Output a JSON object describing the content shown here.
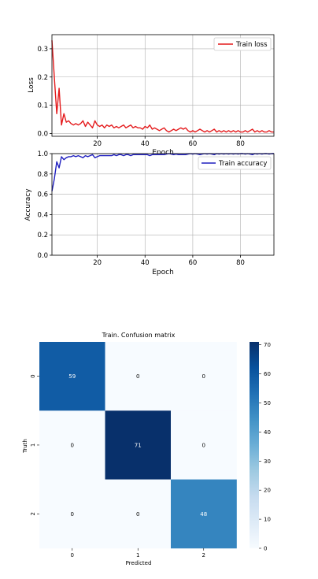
{
  "chart_data": [
    {
      "type": "line",
      "xlabel": "Epoch",
      "ylabel": "Loss",
      "xlim": [
        1,
        94
      ],
      "ylim": [
        -0.01,
        0.35
      ],
      "xticks": [
        20,
        40,
        60,
        80
      ],
      "yticks": [
        0.0,
        0.1,
        0.2,
        0.3
      ],
      "ytick_labels": [
        "0.0",
        "0.1",
        "0.2",
        "0.3"
      ],
      "grid": true,
      "legend": "top-right",
      "series": [
        {
          "name": "Train loss",
          "color": "#e41a1c",
          "x": [
            1,
            2,
            3,
            4,
            5,
            6,
            7,
            8,
            9,
            10,
            11,
            12,
            13,
            14,
            15,
            16,
            17,
            18,
            19,
            20,
            21,
            22,
            23,
            24,
            25,
            26,
            27,
            28,
            29,
            30,
            31,
            32,
            33,
            34,
            35,
            36,
            37,
            38,
            39,
            40,
            41,
            42,
            43,
            44,
            45,
            46,
            47,
            48,
            49,
            50,
            51,
            52,
            53,
            54,
            55,
            56,
            57,
            58,
            59,
            60,
            61,
            62,
            63,
            64,
            65,
            66,
            67,
            68,
            69,
            70,
            71,
            72,
            73,
            74,
            75,
            76,
            77,
            78,
            79,
            80,
            81,
            82,
            83,
            84,
            85,
            86,
            87,
            88,
            89,
            90,
            91,
            92,
            93,
            94
          ],
          "y": [
            0.33,
            0.2,
            0.07,
            0.16,
            0.03,
            0.07,
            0.04,
            0.045,
            0.035,
            0.03,
            0.035,
            0.03,
            0.035,
            0.045,
            0.025,
            0.04,
            0.03,
            0.02,
            0.045,
            0.03,
            0.025,
            0.03,
            0.02,
            0.03,
            0.025,
            0.03,
            0.02,
            0.025,
            0.02,
            0.025,
            0.03,
            0.02,
            0.025,
            0.03,
            0.02,
            0.025,
            0.02,
            0.02,
            0.015,
            0.025,
            0.02,
            0.03,
            0.015,
            0.02,
            0.015,
            0.01,
            0.015,
            0.02,
            0.01,
            0.005,
            0.01,
            0.015,
            0.01,
            0.015,
            0.02,
            0.015,
            0.02,
            0.01,
            0.005,
            0.01,
            0.005,
            0.01,
            0.015,
            0.01,
            0.005,
            0.01,
            0.005,
            0.01,
            0.015,
            0.005,
            0.01,
            0.005,
            0.01,
            0.005,
            0.01,
            0.005,
            0.01,
            0.005,
            0.01,
            0.005,
            0.005,
            0.01,
            0.005,
            0.01,
            0.015,
            0.005,
            0.01,
            0.005,
            0.01,
            0.005,
            0.005,
            0.01,
            0.005,
            0.005
          ]
        }
      ]
    },
    {
      "type": "line",
      "xlabel": "Epoch",
      "ylabel": "Accuracy",
      "xlim": [
        1,
        94
      ],
      "ylim": [
        0.0,
        1.0
      ],
      "xticks": [
        20,
        40,
        60,
        80
      ],
      "yticks": [
        0.0,
        0.2,
        0.4,
        0.6,
        0.8,
        1.0
      ],
      "ytick_labels": [
        "0.0",
        "0.2",
        "0.4",
        "0.6",
        "0.8",
        "1.0"
      ],
      "grid": true,
      "legend": "top-right",
      "series": [
        {
          "name": "Train accuracy",
          "color": "#1f1fbf",
          "x": [
            1,
            2,
            3,
            4,
            5,
            6,
            7,
            8,
            9,
            10,
            11,
            12,
            13,
            14,
            15,
            16,
            17,
            18,
            19,
            20,
            21,
            22,
            23,
            24,
            25,
            26,
            27,
            28,
            29,
            30,
            31,
            32,
            33,
            34,
            35,
            36,
            37,
            38,
            39,
            40,
            41,
            42,
            43,
            44,
            45,
            46,
            47,
            48,
            49,
            50,
            51,
            52,
            53,
            54,
            55,
            56,
            57,
            58,
            59,
            60,
            61,
            62,
            63,
            64,
            65,
            66,
            67,
            68,
            69,
            70,
            71,
            72,
            73,
            74,
            75,
            76,
            77,
            78,
            79,
            80,
            81,
            82,
            83,
            84,
            85,
            86,
            87,
            88,
            89,
            90,
            91,
            92,
            93,
            94
          ],
          "y": [
            0.63,
            0.75,
            0.92,
            0.86,
            0.97,
            0.94,
            0.96,
            0.97,
            0.97,
            0.98,
            0.97,
            0.98,
            0.97,
            0.96,
            0.98,
            0.97,
            0.98,
            0.99,
            0.96,
            0.97,
            0.98,
            0.98,
            0.98,
            0.98,
            0.98,
            0.98,
            0.99,
            0.98,
            0.99,
            0.99,
            0.98,
            0.99,
            0.99,
            0.98,
            0.99,
            0.99,
            0.99,
            0.99,
            0.99,
            0.99,
            0.99,
            0.98,
            0.99,
            0.99,
            0.99,
            0.99,
            0.99,
            0.99,
            0.995,
            1.0,
            0.995,
            0.99,
            0.995,
            0.99,
            0.99,
            0.99,
            0.99,
            0.995,
            1.0,
            0.995,
            1.0,
            0.995,
            0.99,
            0.995,
            1.0,
            0.995,
            1.0,
            0.995,
            0.99,
            1.0,
            0.995,
            1.0,
            0.995,
            1.0,
            0.995,
            1.0,
            0.995,
            1.0,
            0.995,
            1.0,
            1.0,
            0.995,
            1.0,
            0.995,
            0.99,
            1.0,
            0.995,
            1.0,
            0.995,
            1.0,
            1.0,
            0.995,
            1.0,
            1.0
          ]
        }
      ]
    },
    {
      "type": "heatmap",
      "title": "Train. Confusion matrix",
      "xlabel": "Predicted",
      "ylabel": "Truth",
      "x_categories": [
        "0",
        "1",
        "2"
      ],
      "y_categories": [
        "0",
        "1",
        "2"
      ],
      "values": [
        [
          59,
          0,
          0
        ],
        [
          0,
          71,
          0
        ],
        [
          0,
          0,
          48
        ]
      ],
      "colorbar_ticks": [
        0,
        10,
        20,
        30,
        40,
        50,
        60,
        70
      ],
      "colorbar_range": [
        0,
        71
      ],
      "colormap": "Blues"
    }
  ]
}
